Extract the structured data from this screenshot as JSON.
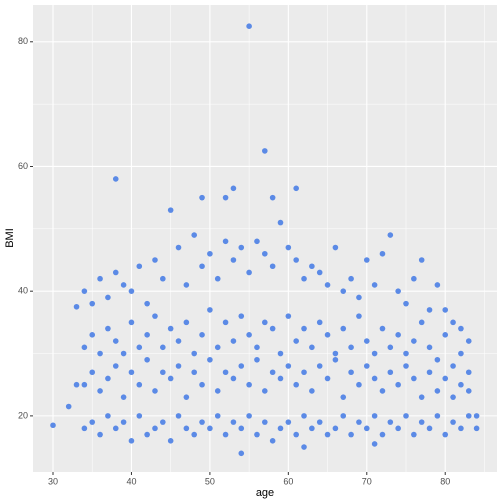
{
  "chart_data": {
    "type": "scatter",
    "xlabel": "age",
    "ylabel": "BMI",
    "color": "#5b8ae6",
    "grid": true,
    "xlim": [
      27.45,
      86.6
    ],
    "ylim": [
      11.0,
      85.9
    ],
    "xticks": [
      30,
      40,
      50,
      60,
      70,
      80
    ],
    "yticks": [
      20,
      40,
      60,
      80
    ],
    "xminor": [
      35,
      45,
      55,
      65,
      75,
      85
    ],
    "yminor": [
      30,
      50,
      70
    ],
    "x": [
      34,
      34,
      34,
      34,
      35,
      35,
      35,
      35,
      36,
      36,
      36,
      36,
      37,
      37,
      37,
      37,
      38,
      38,
      38,
      38,
      39,
      39,
      39,
      39,
      40,
      40,
      40,
      40,
      41,
      41,
      41,
      41,
      42,
      42,
      42,
      42,
      43,
      43,
      43,
      43,
      44,
      44,
      44,
      44,
      45,
      45,
      45,
      45,
      46,
      46,
      46,
      46,
      47,
      47,
      47,
      47,
      48,
      48,
      48,
      48,
      49,
      49,
      49,
      49,
      50,
      50,
      50,
      50,
      51,
      51,
      51,
      51,
      52,
      52,
      52,
      52,
      53,
      53,
      53,
      53,
      54,
      54,
      54,
      54,
      55,
      55,
      55,
      55,
      56,
      56,
      56,
      56,
      57,
      57,
      57,
      57,
      58,
      58,
      58,
      58,
      59,
      59,
      59,
      59,
      60,
      60,
      60,
      60,
      61,
      61,
      61,
      61,
      62,
      62,
      62,
      62,
      63,
      63,
      63,
      63,
      64,
      64,
      64,
      64,
      65,
      65,
      65,
      65,
      66,
      66,
      66,
      66,
      67,
      67,
      67,
      67,
      68,
      68,
      68,
      68,
      69,
      69,
      69,
      69,
      70,
      70,
      70,
      70,
      71,
      71,
      71,
      71,
      72,
      72,
      72,
      72,
      73,
      73,
      73,
      73,
      74,
      74,
      74,
      74,
      75,
      75,
      75,
      75,
      76,
      76,
      76,
      76,
      77,
      77,
      77,
      77,
      78,
      78,
      78,
      78,
      79,
      79,
      79,
      79,
      80,
      80,
      80,
      80,
      81,
      81,
      81,
      81,
      82,
      82,
      82,
      82,
      83,
      83,
      83,
      83,
      30,
      32,
      33,
      33,
      38,
      55,
      57,
      61,
      58,
      49,
      52,
      53,
      54,
      62,
      71,
      84,
      84
    ],
    "values": [
      18,
      25,
      31,
      40,
      19,
      27,
      33,
      38,
      17,
      24,
      30,
      42,
      20,
      26,
      34,
      39,
      18,
      28,
      32,
      43,
      19,
      23,
      30,
      41,
      16,
      27,
      35,
      40,
      20,
      25,
      31,
      44,
      17,
      29,
      33,
      38,
      18,
      24,
      36,
      45,
      19,
      27,
      31,
      42,
      16,
      26,
      34,
      53,
      20,
      28,
      32,
      47,
      18,
      23,
      35,
      41,
      17,
      27,
      30,
      49,
      19,
      25,
      33,
      44,
      18,
      29,
      37,
      46,
      20,
      24,
      31,
      42,
      17,
      27,
      35,
      48,
      19,
      26,
      32,
      45,
      18,
      28,
      36,
      47,
      20,
      25,
      33,
      43,
      17,
      29,
      31,
      48,
      19,
      24,
      35,
      46,
      16,
      27,
      34,
      44,
      18,
      26,
      30,
      51,
      19,
      28,
      36,
      47,
      17,
      25,
      32,
      45,
      20,
      27,
      34,
      42,
      18,
      24,
      31,
      44,
      19,
      28,
      35,
      43,
      17,
      26,
      33,
      41,
      18,
      29,
      30,
      47,
      20,
      23,
      34,
      40,
      17,
      27,
      31,
      42,
      19,
      25,
      36,
      39,
      18,
      28,
      32,
      45,
      20,
      26,
      30,
      41,
      17,
      24,
      34,
      46,
      19,
      27,
      31,
      49,
      18,
      25,
      33,
      40,
      20,
      28,
      30,
      38,
      17,
      26,
      32,
      42,
      19,
      23,
      35,
      45,
      18,
      27,
      31,
      37,
      20,
      24,
      29,
      41,
      17,
      26,
      33,
      37,
      19,
      23,
      28,
      35,
      18,
      25,
      30,
      34,
      20,
      24,
      27,
      32,
      18.5,
      21.5,
      37.5,
      25,
      58,
      82.5,
      62.5,
      56.5,
      55,
      55,
      55,
      56.5,
      14,
      15,
      15.5,
      18,
      20
    ]
  }
}
